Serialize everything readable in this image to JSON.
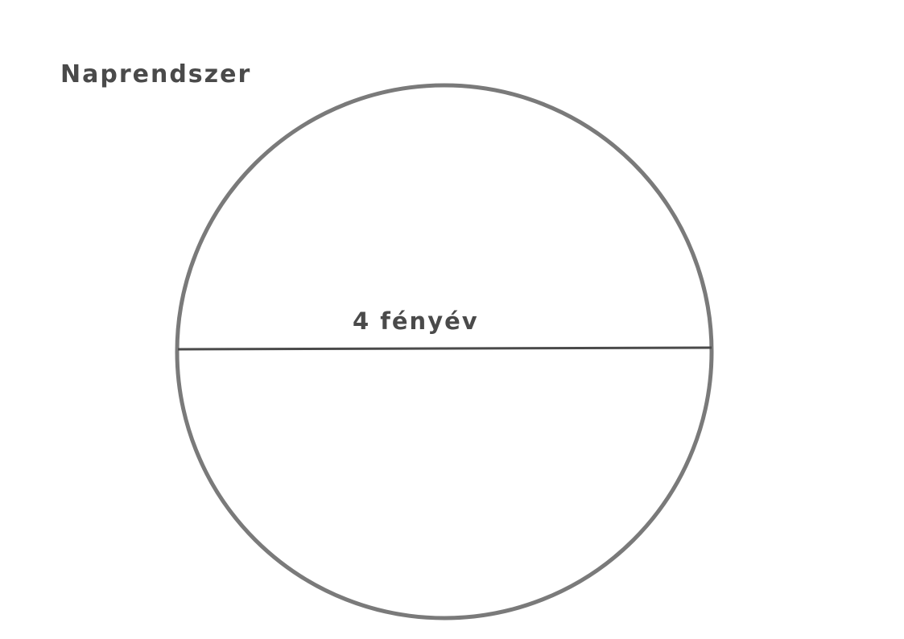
{
  "diagram": {
    "title": "Naprendszer",
    "diameter_label": "4 fényév"
  },
  "colors": {
    "circle_stroke": "#7a7a7a",
    "diameter_line": "#4a4a4a",
    "text": "#4a4a4a",
    "background": "#ffffff"
  }
}
